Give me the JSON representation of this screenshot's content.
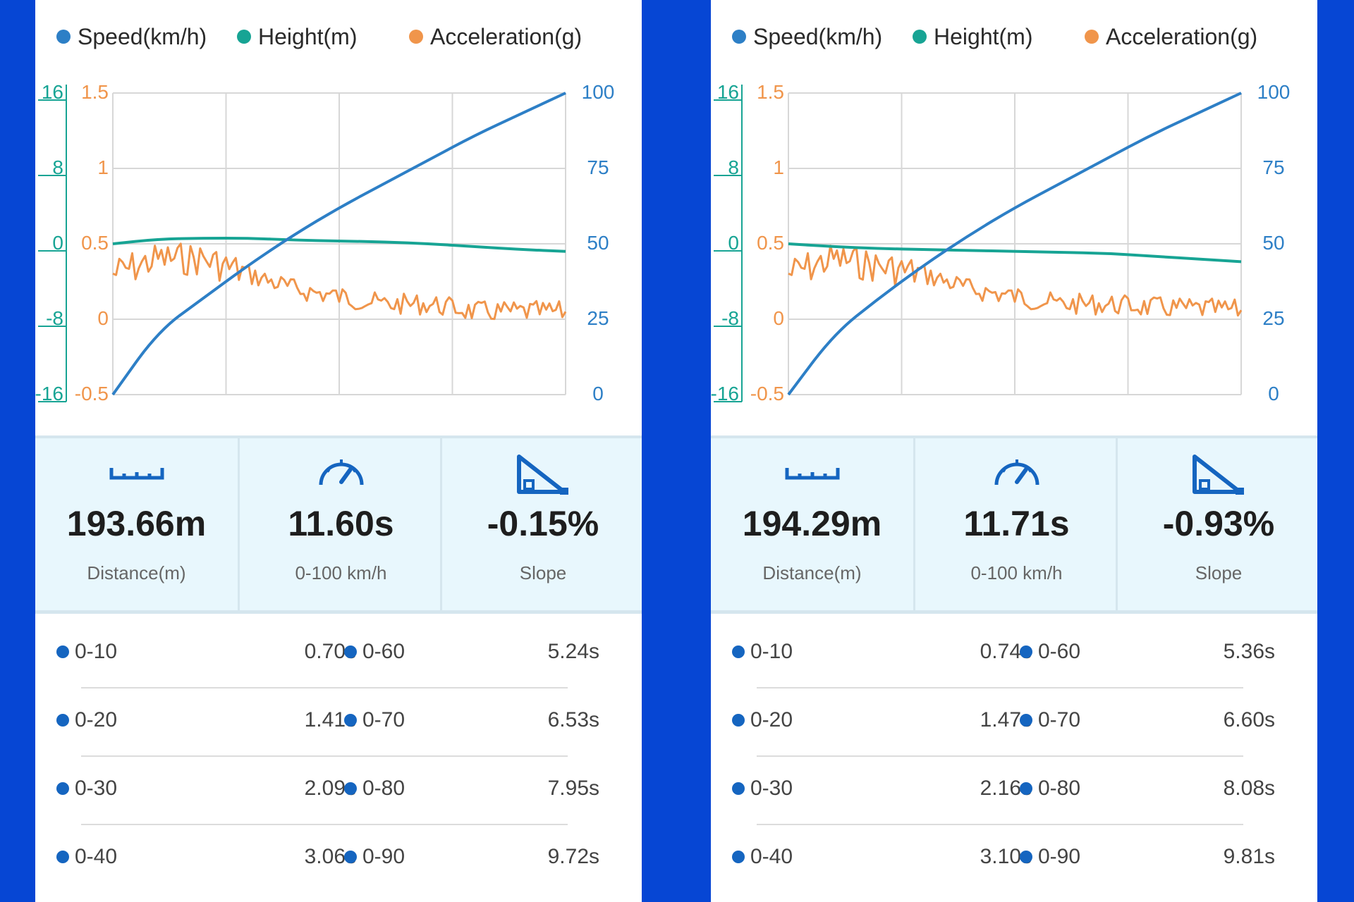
{
  "colors": {
    "speed": "#2d7fc6",
    "height": "#17a494",
    "acceleration": "#f0954b",
    "background": "#0646d4"
  },
  "panels": [
    {
      "legend": [
        "Speed(km/h)",
        "Height(m)",
        "Acceleration(g)"
      ],
      "stats": {
        "distance": {
          "value": "193.66m",
          "label": "Distance(m)",
          "icon": "ruler-icon"
        },
        "time": {
          "value": "11.60s",
          "label": "0-100 km/h",
          "icon": "speedometer-icon"
        },
        "slope": {
          "value": "-0.15%",
          "label": "Slope",
          "icon": "slope-icon"
        }
      },
      "times": [
        {
          "a_label": "0-10",
          "a_value": "0.70s",
          "b_label": "0-60",
          "b_value": "5.24s"
        },
        {
          "a_label": "0-20",
          "a_value": "1.41s",
          "b_label": "0-70",
          "b_value": "6.53s"
        },
        {
          "a_label": "0-30",
          "a_value": "2.09s",
          "b_label": "0-80",
          "b_value": "7.95s"
        },
        {
          "a_label": "0-40",
          "a_value": "3.06s",
          "b_label": "0-90",
          "b_value": "9.72s"
        }
      ]
    },
    {
      "legend": [
        "Speed(km/h)",
        "Height(m)",
        "Acceleration(g)"
      ],
      "stats": {
        "distance": {
          "value": "194.29m",
          "label": "Distance(m)",
          "icon": "ruler-icon"
        },
        "time": {
          "value": "11.71s",
          "label": "0-100 km/h",
          "icon": "speedometer-icon"
        },
        "slope": {
          "value": "-0.93%",
          "label": "Slope",
          "icon": "slope-icon"
        }
      },
      "times": [
        {
          "a_label": "0-10",
          "a_value": "0.74s",
          "b_label": "0-60",
          "b_value": "5.36s"
        },
        {
          "a_label": "0-20",
          "a_value": "1.47s",
          "b_label": "0-70",
          "b_value": "6.60s"
        },
        {
          "a_label": "0-30",
          "a_value": "2.16s",
          "b_label": "0-80",
          "b_value": "8.08s"
        },
        {
          "a_label": "0-40",
          "a_value": "3.10s",
          "b_label": "0-90",
          "b_value": "9.81s"
        }
      ]
    }
  ],
  "chart_data": [
    {
      "type": "line",
      "series": [
        {
          "name": "Speed(km/h)",
          "axis": "right",
          "x": [
            0,
            1,
            2,
            3,
            4,
            5,
            6,
            7,
            8,
            9,
            10
          ],
          "values": [
            0,
            21,
            32,
            43,
            53,
            62,
            70,
            78,
            86,
            93,
            100
          ]
        },
        {
          "name": "Height(m)",
          "axis": "left",
          "x": [
            0,
            1,
            2,
            3,
            4,
            5,
            6,
            7,
            8,
            9,
            10
          ],
          "values": [
            0,
            0.5,
            0.6,
            0.6,
            0.4,
            0.3,
            0.2,
            0,
            -0.3,
            -0.6,
            -0.8
          ]
        },
        {
          "name": "Acceleration(g)",
          "axis": "left2",
          "x": [
            0,
            1,
            2,
            3,
            4,
            5,
            6,
            7,
            8,
            9,
            10
          ],
          "values": [
            0.3,
            0.4,
            0.4,
            0.3,
            0.2,
            0.15,
            0.1,
            0.1,
            0.05,
            0.05,
            0.05
          ]
        }
      ],
      "y_left_ticks": [
        "16",
        "8",
        "0",
        "-8",
        "-16"
      ],
      "y_left2_ticks": [
        "1.5",
        "1",
        "0.5",
        "0",
        "-0.5"
      ],
      "y_right_ticks": [
        "100",
        "75",
        "50",
        "25",
        "0"
      ],
      "ylim_left": [
        -16,
        16
      ],
      "ylim_left2": [
        -0.5,
        1.5
      ],
      "ylim_right": [
        0,
        100
      ],
      "xlim": [
        0,
        10
      ],
      "grid": true,
      "legend": "top"
    },
    {
      "type": "line",
      "series": [
        {
          "name": "Speed(km/h)",
          "axis": "right",
          "x": [
            0,
            1,
            2,
            3,
            4,
            5,
            6,
            7,
            8,
            9,
            10
          ],
          "values": [
            0,
            20,
            32,
            43,
            53,
            62,
            70,
            78,
            86,
            93,
            100
          ]
        },
        {
          "name": "Height(m)",
          "axis": "left",
          "x": [
            0,
            1,
            2,
            3,
            4,
            5,
            6,
            7,
            8,
            9,
            10
          ],
          "values": [
            0,
            -0.3,
            -0.5,
            -0.6,
            -0.7,
            -0.8,
            -0.9,
            -1.0,
            -1.3,
            -1.6,
            -1.9
          ]
        },
        {
          "name": "Acceleration(g)",
          "axis": "left2",
          "x": [
            0,
            1,
            2,
            3,
            4,
            5,
            6,
            7,
            8,
            9,
            10
          ],
          "values": [
            0.3,
            0.4,
            0.35,
            0.3,
            0.2,
            0.15,
            0.1,
            0.1,
            0.08,
            0.07,
            0.06
          ]
        }
      ],
      "y_left_ticks": [
        "16",
        "8",
        "0",
        "-8",
        "-16"
      ],
      "y_left2_ticks": [
        "1.5",
        "1",
        "0.5",
        "0",
        "-0.5"
      ],
      "y_right_ticks": [
        "100",
        "75",
        "50",
        "25",
        "0"
      ],
      "ylim_left": [
        -16,
        16
      ],
      "ylim_left2": [
        -0.5,
        1.5
      ],
      "ylim_right": [
        0,
        100
      ],
      "xlim": [
        0,
        10
      ],
      "grid": true,
      "legend": "top"
    }
  ]
}
